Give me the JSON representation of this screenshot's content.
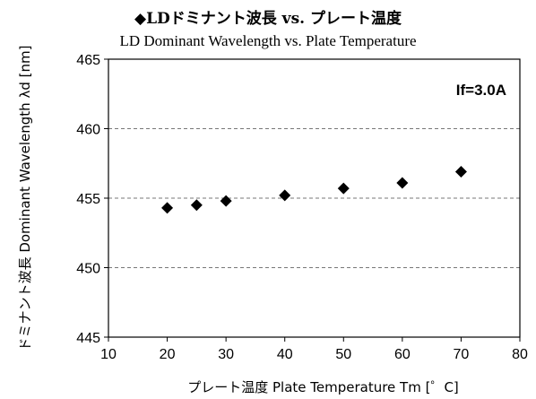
{
  "chart_data": {
    "type": "scatter",
    "title": "◆LDドミナント波長 vs. プレート温度",
    "subtitle": "LD Dominant Wavelength vs. Plate Temperature",
    "xlabel": "プレート温度  Plate Temperature  Tm [゜C]",
    "ylabel": "ドミナント波長  Dominant  Wavelength  λd [nm]",
    "annotation": "If=3.0A",
    "xlim": [
      10,
      80
    ],
    "ylim": [
      445,
      465
    ],
    "xticks": [
      10,
      20,
      30,
      40,
      50,
      60,
      70,
      80
    ],
    "yticks": [
      445,
      450,
      455,
      460,
      465
    ],
    "grid": true,
    "marker": "diamond",
    "marker_color": "#000000",
    "series": [
      {
        "x": [
          20,
          25,
          30,
          40,
          50,
          60,
          70
        ],
        "y": [
          454.3,
          454.5,
          454.8,
          455.2,
          455.7,
          456.1,
          456.9
        ]
      }
    ]
  }
}
